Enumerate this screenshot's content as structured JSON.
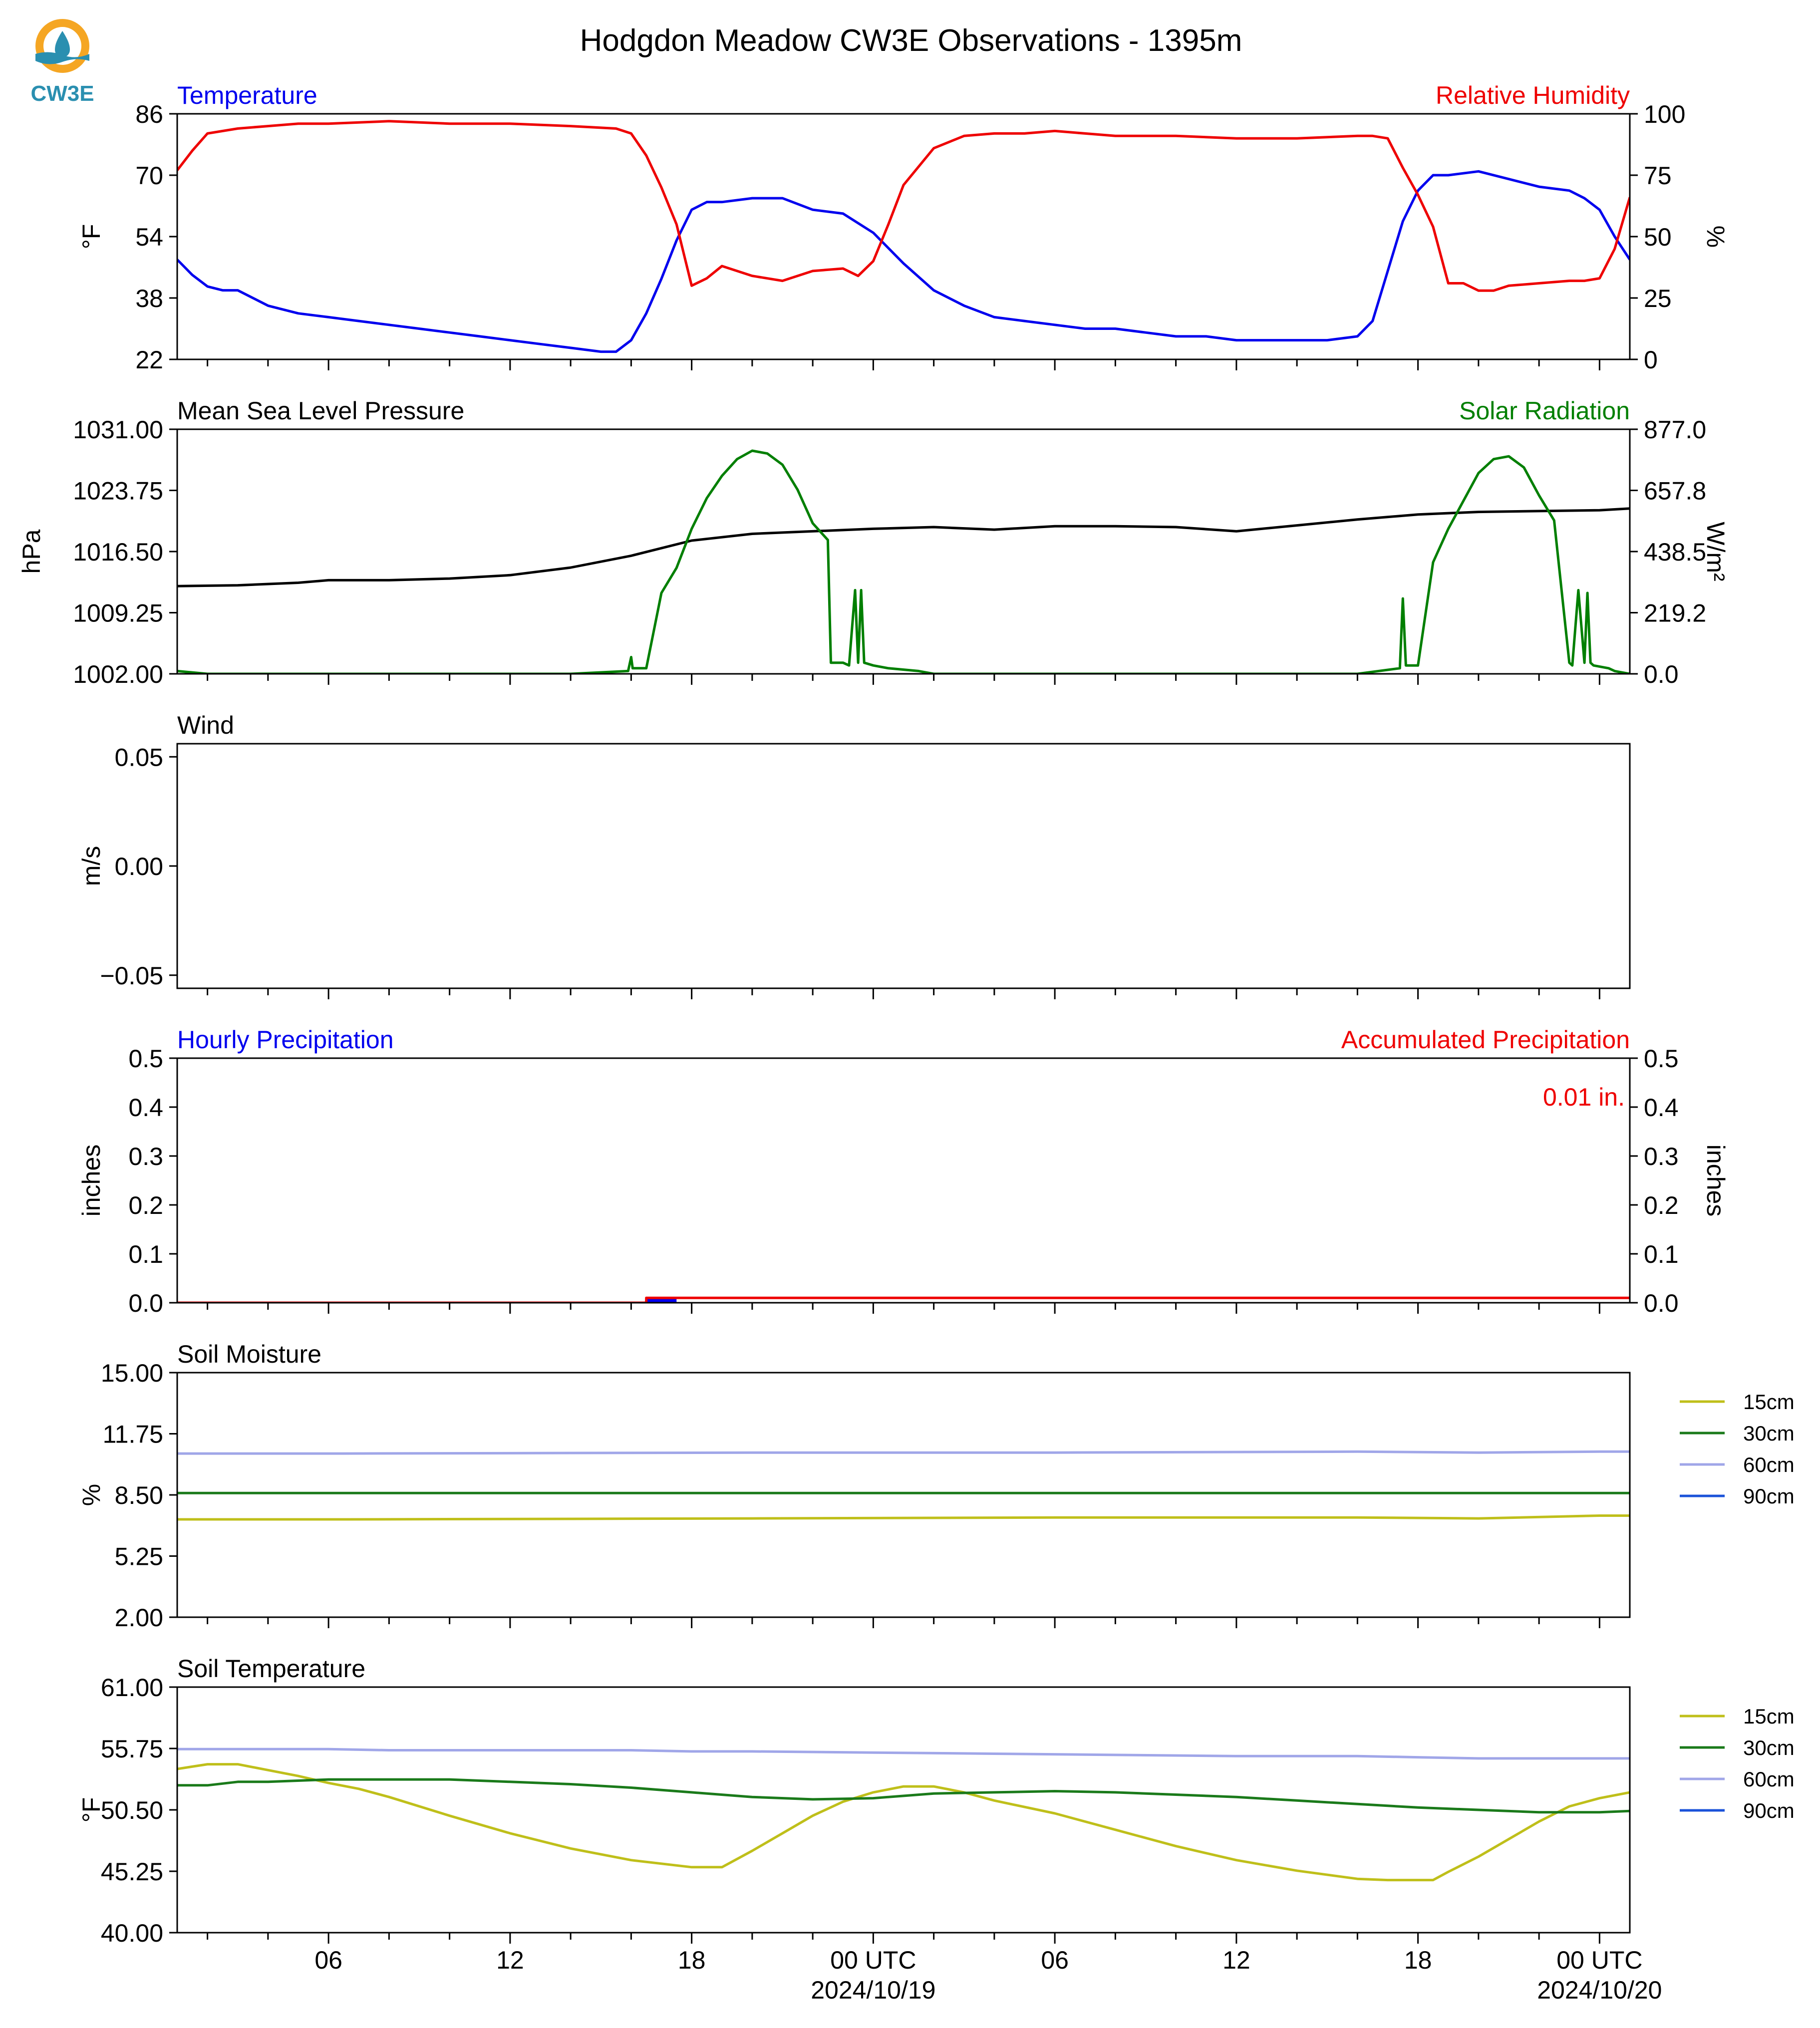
{
  "title": "Hodgdon Meadow CW3E Observations - 1395m",
  "logo_text": "CW3E",
  "colors": {
    "temperature": "#0000ee",
    "humidity": "#ee0000",
    "pressure": "#000000",
    "solar": "#007f00",
    "soil_15": "#bfbf1a",
    "soil_30": "#1a7a1a",
    "soil_60": "#a0a6e8",
    "soil_90": "#1a52d9",
    "logo_orange": "#f5a623",
    "logo_teal": "#2a8fb0"
  },
  "x_axis": {
    "tick_labels": [
      "06",
      "12",
      "18",
      "00 UTC",
      "06",
      "12",
      "18",
      "00 UTC"
    ],
    "tick_hours": [
      6,
      12,
      18,
      24,
      30,
      36,
      42,
      48
    ],
    "date_labels": [
      "2024/10/19",
      "2024/10/20"
    ],
    "date_hours": [
      24,
      48
    ],
    "range_hours": [
      1,
      49
    ]
  },
  "chart_data": [
    {
      "id": "temp_rh",
      "type": "line",
      "title_left": "Temperature",
      "title_right": "Relative Humidity",
      "ylabel_left": "°F",
      "ylabel_right": "%",
      "ylim_left": [
        22,
        86
      ],
      "yticks_left": [
        "22",
        "38",
        "54",
        "70",
        "86"
      ],
      "ylim_right": [
        0,
        100
      ],
      "yticks_right": [
        "0",
        "25",
        "50",
        "75",
        "100"
      ],
      "series": [
        {
          "key": "temperature",
          "axis": "left",
          "x": [
            1,
            1.5,
            2,
            2.5,
            3,
            3.5,
            4,
            5,
            6,
            7,
            8,
            9,
            10,
            11,
            12,
            13,
            14,
            15,
            15.5,
            16,
            16.5,
            17,
            17.5,
            18,
            18.5,
            19,
            20,
            21,
            22,
            23,
            24,
            25,
            26,
            27,
            28,
            29,
            30,
            31,
            32,
            33,
            34,
            35,
            36,
            37,
            38,
            39,
            40,
            40.5,
            41,
            41.5,
            42,
            42.5,
            43,
            44,
            45,
            46,
            47,
            47.5,
            48,
            48.5,
            49
          ],
          "y": [
            48,
            44,
            41,
            40,
            40,
            38,
            36,
            34,
            33,
            32,
            31,
            30,
            29,
            28,
            27,
            26,
            25,
            24,
            24,
            27,
            34,
            43,
            53,
            61,
            63,
            63,
            64,
            64,
            61,
            60,
            55,
            47,
            40,
            36,
            33,
            32,
            31,
            30,
            30,
            29,
            28,
            28,
            27,
            27,
            27,
            27,
            28,
            32,
            45,
            58,
            66,
            70,
            70,
            71,
            69,
            67,
            66,
            64,
            61,
            54,
            48
          ]
        },
        {
          "key": "humidity",
          "axis": "right",
          "x": [
            1,
            1.5,
            2,
            3,
            4,
            5,
            6,
            8,
            10,
            12,
            14,
            15.5,
            16,
            16.5,
            17,
            17.5,
            18,
            18.5,
            19,
            20,
            21,
            22,
            23,
            23.5,
            24,
            24.5,
            25,
            26,
            27,
            28,
            29,
            30,
            31,
            32,
            34,
            36,
            38,
            40,
            40.5,
            41,
            41.5,
            42,
            42.5,
            43,
            43.5,
            44,
            44.5,
            45,
            46,
            47,
            47.5,
            48,
            48.5,
            49
          ],
          "y": [
            77,
            85,
            92,
            94,
            95,
            96,
            96,
            97,
            96,
            96,
            95,
            94,
            92,
            83,
            70,
            55,
            30,
            33,
            38,
            34,
            32,
            36,
            37,
            34,
            40,
            55,
            71,
            86,
            91,
            92,
            92,
            93,
            92,
            91,
            91,
            90,
            90,
            91,
            91,
            90,
            78,
            67,
            54,
            31,
            31,
            28,
            28,
            30,
            31,
            32,
            32,
            33,
            45,
            66
          ]
        }
      ]
    },
    {
      "id": "pressure_solar",
      "type": "line",
      "title_left": "Mean Sea Level Pressure",
      "title_right": "Solar Radiation",
      "ylabel_left": "hPa",
      "ylabel_right": "W/m²",
      "ylim_left": [
        1002.0,
        1031.0
      ],
      "yticks_left": [
        "1002.00",
        "1009.25",
        "1016.50",
        "1023.75",
        "1031.00"
      ],
      "ylim_right": [
        0.0,
        877.0
      ],
      "yticks_right": [
        "0.0",
        "219.2",
        "438.5",
        "657.8",
        "877.0"
      ],
      "series": [
        {
          "key": "pressure",
          "axis": "left",
          "x": [
            1,
            3,
            5,
            6,
            8,
            10,
            12,
            14,
            16,
            18,
            20,
            22,
            24,
            26,
            28,
            30,
            32,
            34,
            36,
            38,
            40,
            42,
            44,
            46,
            48,
            49
          ],
          "y": [
            1012.4,
            1012.5,
            1012.8,
            1013.1,
            1013.1,
            1013.3,
            1013.7,
            1014.6,
            1016.0,
            1017.8,
            1018.6,
            1018.9,
            1019.2,
            1019.4,
            1019.1,
            1019.5,
            1019.5,
            1019.4,
            1018.9,
            1019.6,
            1020.3,
            1020.9,
            1021.2,
            1021.3,
            1021.4,
            1021.6
          ]
        },
        {
          "key": "solar",
          "axis": "right",
          "x": [
            1,
            2,
            6,
            14,
            15.9,
            16.0,
            16.05,
            16.3,
            16.5,
            17,
            17.5,
            18,
            18.5,
            19,
            19.5,
            20,
            20.5,
            21,
            21.5,
            22,
            22.5,
            22.6,
            23.0,
            23.2,
            23.4,
            23.5,
            23.6,
            23.7,
            24.0,
            24.5,
            25.5,
            26,
            40,
            41.4,
            41.5,
            41.6,
            42,
            42.5,
            43,
            43.5,
            44,
            44.5,
            45,
            45.5,
            46,
            46.5,
            47.0,
            47.1,
            47.3,
            47.5,
            47.6,
            47.7,
            47.8,
            48.3,
            48.5,
            49
          ],
          "y": [
            10,
            0,
            0,
            0,
            10,
            60,
            20,
            20,
            20,
            290,
            380,
            520,
            630,
            710,
            770,
            800,
            790,
            750,
            660,
            540,
            480,
            40,
            40,
            30,
            300,
            40,
            300,
            40,
            30,
            20,
            10,
            0,
            0,
            20,
            270,
            30,
            30,
            400,
            520,
            620,
            720,
            770,
            780,
            740,
            640,
            550,
            40,
            30,
            300,
            40,
            290,
            40,
            30,
            20,
            10,
            0
          ]
        }
      ]
    },
    {
      "id": "wind",
      "type": "line",
      "title_left": "Wind",
      "ylabel_left": "m/s",
      "ylim_left": [
        -0.056,
        0.056
      ],
      "yticks_left": [
        "−0.05",
        "0.00",
        "0.05"
      ],
      "ytick_values": [
        -0.05,
        0.0,
        0.05
      ],
      "series": []
    },
    {
      "id": "precip",
      "type": "bar",
      "title_left": "Hourly Precipitation",
      "title_right": "Accumulated Precipitation",
      "annotation": "0.01 in.",
      "ylabel_left": "inches",
      "ylabel_right": "inches",
      "ylim_left": [
        0.0,
        0.5
      ],
      "yticks_left": [
        "0.0",
        "0.1",
        "0.2",
        "0.3",
        "0.4",
        "0.5"
      ],
      "ylim_right": [
        0.0,
        0.5
      ],
      "yticks_right": [
        "0.0",
        "0.1",
        "0.2",
        "0.3",
        "0.4",
        "0.5"
      ],
      "hourly_bars": [
        {
          "x": 17,
          "value": 0.01
        }
      ],
      "series": [
        {
          "key": "humidity",
          "axis": "right",
          "x": [
            1,
            16.5,
            16.5,
            49
          ],
          "y": [
            0.0,
            0.0,
            0.01,
            0.01
          ]
        }
      ]
    },
    {
      "id": "soil_moisture",
      "type": "line",
      "title_left": "Soil Moisture",
      "ylabel_left": "%",
      "ylim_left": [
        2.0,
        15.0
      ],
      "yticks_left": [
        "2.00",
        "5.25",
        "8.50",
        "11.75",
        "15.00"
      ],
      "legend": [
        "15cm",
        "30cm",
        "60cm",
        "90cm"
      ],
      "series": [
        {
          "key": "soil_15",
          "name": "15cm",
          "axis": "left",
          "x": [
            1,
            6,
            6.5,
            20,
            30,
            40,
            44,
            48,
            49
          ],
          "y": [
            7.2,
            7.2,
            7.2,
            7.25,
            7.3,
            7.3,
            7.25,
            7.4,
            7.4
          ]
        },
        {
          "key": "soil_30",
          "name": "30cm",
          "axis": "left",
          "x": [
            1,
            6,
            6.5,
            49
          ],
          "y": [
            8.6,
            8.6,
            8.6,
            8.6
          ]
        },
        {
          "key": "soil_60",
          "name": "60cm",
          "axis": "left",
          "x": [
            1,
            6,
            6.5,
            20,
            30,
            40,
            44,
            48,
            49
          ],
          "y": [
            10.7,
            10.7,
            10.7,
            10.75,
            10.75,
            10.8,
            10.75,
            10.8,
            10.8
          ]
        },
        {
          "key": "soil_90",
          "name": "90cm",
          "axis": "left",
          "x": [],
          "y": []
        }
      ]
    },
    {
      "id": "soil_temp",
      "type": "line",
      "title_left": "Soil Temperature",
      "ylabel_left": "°F",
      "ylim_left": [
        40.0,
        61.0
      ],
      "yticks_left": [
        "40.00",
        "45.25",
        "50.50",
        "55.75",
        "61.00"
      ],
      "legend": [
        "15cm",
        "30cm",
        "60cm",
        "90cm"
      ],
      "series": [
        {
          "key": "soil_15",
          "name": "15cm",
          "axis": "left",
          "x": [
            1,
            2,
            3,
            4,
            5,
            6,
            7,
            8,
            10,
            12,
            14,
            16,
            18,
            19,
            20,
            21,
            22,
            23,
            24,
            25,
            26,
            27,
            28,
            30,
            32,
            34,
            36,
            38,
            40,
            41,
            42,
            42.5,
            43,
            44,
            45,
            46,
            47,
            48,
            49
          ],
          "y": [
            54.0,
            54.4,
            54.4,
            53.9,
            53.4,
            52.8,
            52.3,
            51.6,
            50.0,
            48.5,
            47.2,
            46.2,
            45.6,
            45.6,
            47.0,
            48.5,
            50.0,
            51.2,
            52.0,
            52.5,
            52.5,
            52.0,
            51.3,
            50.2,
            48.8,
            47.4,
            46.2,
            45.3,
            44.6,
            44.5,
            44.5,
            44.5,
            45.2,
            46.5,
            48.0,
            49.5,
            50.8,
            51.5,
            52.0
          ]
        },
        {
          "key": "soil_30",
          "name": "30cm",
          "axis": "left",
          "x": [
            1,
            2,
            3,
            4,
            6,
            8,
            10,
            12,
            14,
            16,
            18,
            20,
            22,
            24,
            26,
            28,
            30,
            32,
            34,
            36,
            38,
            40,
            42,
            44,
            46,
            48,
            49
          ],
          "y": [
            52.6,
            52.6,
            52.9,
            52.9,
            53.1,
            53.1,
            53.1,
            52.9,
            52.7,
            52.4,
            52.0,
            51.6,
            51.4,
            51.5,
            51.9,
            52.0,
            52.1,
            52.0,
            51.8,
            51.6,
            51.3,
            51.0,
            50.7,
            50.5,
            50.3,
            50.3,
            50.4
          ]
        },
        {
          "key": "soil_60",
          "name": "60cm",
          "axis": "left",
          "x": [
            1,
            6,
            8,
            12,
            16,
            18,
            20,
            24,
            28,
            32,
            36,
            40,
            42,
            44,
            46,
            48,
            49
          ],
          "y": [
            55.7,
            55.7,
            55.6,
            55.6,
            55.6,
            55.5,
            55.5,
            55.4,
            55.3,
            55.2,
            55.1,
            55.1,
            55.0,
            54.9,
            54.9,
            54.9,
            54.9
          ]
        },
        {
          "key": "soil_90",
          "name": "90cm",
          "axis": "left",
          "x": [],
          "y": []
        }
      ]
    }
  ]
}
